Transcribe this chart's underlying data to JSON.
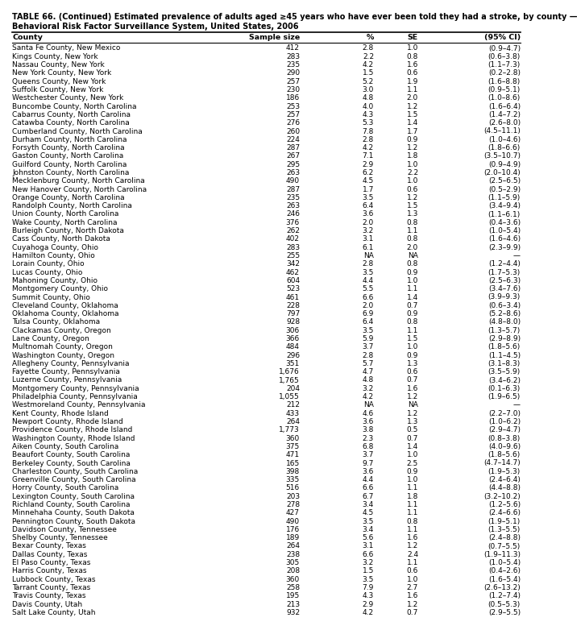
{
  "title_line1": "TABLE 66. (Continued) Estimated prevalence of adults aged ≥45 years who have ever been told they had a stroke, by county —",
  "title_line2": "Behavioral Risk Factor Surveillance System, United States, 2006",
  "headers": [
    "County",
    "Sample size",
    "%",
    "SE",
    "(95% CI)"
  ],
  "rows": [
    [
      "Santa Fe County, New Mexico",
      "412",
      "2.8",
      "1.0",
      "(0.9–4.7)"
    ],
    [
      "Kings County, New York",
      "283",
      "2.2",
      "0.8",
      "(0.6–3.8)"
    ],
    [
      "Nassau County, New York",
      "235",
      "4.2",
      "1.6",
      "(1.1–7.3)"
    ],
    [
      "New York County, New York",
      "290",
      "1.5",
      "0.6",
      "(0.2–2.8)"
    ],
    [
      "Queens County, New York",
      "257",
      "5.2",
      "1.9",
      "(1.6–8.8)"
    ],
    [
      "Suffolk County, New York",
      "230",
      "3.0",
      "1.1",
      "(0.9–5.1)"
    ],
    [
      "Westchester County, New York",
      "186",
      "4.8",
      "2.0",
      "(1.0–8.6)"
    ],
    [
      "Buncombe County, North Carolina",
      "253",
      "4.0",
      "1.2",
      "(1.6–6.4)"
    ],
    [
      "Cabarrus County, North Carolina",
      "257",
      "4.3",
      "1.5",
      "(1.4–7.2)"
    ],
    [
      "Catawba County, North Carolina",
      "276",
      "5.3",
      "1.4",
      "(2.6–8.0)"
    ],
    [
      "Cumberland County, North Carolina",
      "260",
      "7.8",
      "1.7",
      "(4.5–11.1)"
    ],
    [
      "Durham County, North Carolina",
      "224",
      "2.8",
      "0.9",
      "(1.0–4.6)"
    ],
    [
      "Forsyth County, North Carolina",
      "287",
      "4.2",
      "1.2",
      "(1.8–6.6)"
    ],
    [
      "Gaston County, North Carolina",
      "267",
      "7.1",
      "1.8",
      "(3.5–10.7)"
    ],
    [
      "Guilford County, North Carolina",
      "295",
      "2.9",
      "1.0",
      "(0.9–4.9)"
    ],
    [
      "Johnston County, North Carolina",
      "263",
      "6.2",
      "2.2",
      "(2.0–10.4)"
    ],
    [
      "Mecklenburg County, North Carolina",
      "490",
      "4.5",
      "1.0",
      "(2.5–6.5)"
    ],
    [
      "New Hanover County, North Carolina",
      "287",
      "1.7",
      "0.6",
      "(0.5–2.9)"
    ],
    [
      "Orange County, North Carolina",
      "235",
      "3.5",
      "1.2",
      "(1.1–5.9)"
    ],
    [
      "Randolph County, North Carolina",
      "263",
      "6.4",
      "1.5",
      "(3.4–9.4)"
    ],
    [
      "Union County, North Carolina",
      "246",
      "3.6",
      "1.3",
      "(1.1–6.1)"
    ],
    [
      "Wake County, North Carolina",
      "376",
      "2.0",
      "0.8",
      "(0.4–3.6)"
    ],
    [
      "Burleigh County, North Dakota",
      "262",
      "3.2",
      "1.1",
      "(1.0–5.4)"
    ],
    [
      "Cass County, North Dakota",
      "402",
      "3.1",
      "0.8",
      "(1.6–4.6)"
    ],
    [
      "Cuyahoga County, Ohio",
      "283",
      "6.1",
      "2.0",
      "(2.3–9.9)"
    ],
    [
      "Hamilton County, Ohio",
      "255",
      "NA",
      "NA",
      "—"
    ],
    [
      "Lorain County, Ohio",
      "342",
      "2.8",
      "0.8",
      "(1.2–4.4)"
    ],
    [
      "Lucas County, Ohio",
      "462",
      "3.5",
      "0.9",
      "(1.7–5.3)"
    ],
    [
      "Mahoning County, Ohio",
      "604",
      "4.4",
      "1.0",
      "(2.5–6.3)"
    ],
    [
      "Montgomery County, Ohio",
      "523",
      "5.5",
      "1.1",
      "(3.4–7.6)"
    ],
    [
      "Summit County, Ohio",
      "461",
      "6.6",
      "1.4",
      "(3.9–9.3)"
    ],
    [
      "Cleveland County, Oklahoma",
      "228",
      "2.0",
      "0.7",
      "(0.6–3.4)"
    ],
    [
      "Oklahoma County, Oklahoma",
      "797",
      "6.9",
      "0.9",
      "(5.2–8.6)"
    ],
    [
      "Tulsa County, Oklahoma",
      "928",
      "6.4",
      "0.8",
      "(4.8–8.0)"
    ],
    [
      "Clackamas County, Oregon",
      "306",
      "3.5",
      "1.1",
      "(1.3–5.7)"
    ],
    [
      "Lane County, Oregon",
      "366",
      "5.9",
      "1.5",
      "(2.9–8.9)"
    ],
    [
      "Multnomah County, Oregon",
      "484",
      "3.7",
      "1.0",
      "(1.8–5.6)"
    ],
    [
      "Washington County, Oregon",
      "296",
      "2.8",
      "0.9",
      "(1.1–4.5)"
    ],
    [
      "Allegheny County, Pennsylvania",
      "351",
      "5.7",
      "1.3",
      "(3.1–8.3)"
    ],
    [
      "Fayette County, Pennsylvania",
      "1,676",
      "4.7",
      "0.6",
      "(3.5–5.9)"
    ],
    [
      "Luzerne County, Pennsylvania",
      "1,765",
      "4.8",
      "0.7",
      "(3.4–6.2)"
    ],
    [
      "Montgomery County, Pennsylvania",
      "204",
      "3.2",
      "1.6",
      "(0.1–6.3)"
    ],
    [
      "Philadelphia County, Pennsylvania",
      "1,055",
      "4.2",
      "1.2",
      "(1.9–6.5)"
    ],
    [
      "Westmoreland County, Pennsylvania",
      "212",
      "NA",
      "NA",
      "—"
    ],
    [
      "Kent County, Rhode Island",
      "433",
      "4.6",
      "1.2",
      "(2.2–7.0)"
    ],
    [
      "Newport County, Rhode Island",
      "264",
      "3.6",
      "1.3",
      "(1.0–6.2)"
    ],
    [
      "Providence County, Rhode Island",
      "1,773",
      "3.8",
      "0.5",
      "(2.9–4.7)"
    ],
    [
      "Washington County, Rhode Island",
      "360",
      "2.3",
      "0.7",
      "(0.8–3.8)"
    ],
    [
      "Aiken County, South Carolina",
      "375",
      "6.8",
      "1.4",
      "(4.0–9.6)"
    ],
    [
      "Beaufort County, South Carolina",
      "471",
      "3.7",
      "1.0",
      "(1.8–5.6)"
    ],
    [
      "Berkeley County, South Carolina",
      "165",
      "9.7",
      "2.5",
      "(4.7–14.7)"
    ],
    [
      "Charleston County, South Carolina",
      "398",
      "3.6",
      "0.9",
      "(1.9–5.3)"
    ],
    [
      "Greenville County, South Carolina",
      "335",
      "4.4",
      "1.0",
      "(2.4–6.4)"
    ],
    [
      "Horry County, South Carolina",
      "516",
      "6.6",
      "1.1",
      "(4.4–8.8)"
    ],
    [
      "Lexington County, South Carolina",
      "203",
      "6.7",
      "1.8",
      "(3.2–10.2)"
    ],
    [
      "Richland County, South Carolina",
      "278",
      "3.4",
      "1.1",
      "(1.2–5.6)"
    ],
    [
      "Minnehaha County, South Dakota",
      "427",
      "4.5",
      "1.1",
      "(2.4–6.6)"
    ],
    [
      "Pennington County, South Dakota",
      "490",
      "3.5",
      "0.8",
      "(1.9–5.1)"
    ],
    [
      "Davidson County, Tennessee",
      "176",
      "3.4",
      "1.1",
      "(1.3–5.5)"
    ],
    [
      "Shelby County, Tennessee",
      "189",
      "5.6",
      "1.6",
      "(2.4–8.8)"
    ],
    [
      "Bexar County, Texas",
      "264",
      "3.1",
      "1.2",
      "(0.7–5.5)"
    ],
    [
      "Dallas County, Texas",
      "238",
      "6.6",
      "2.4",
      "(1.9–11.3)"
    ],
    [
      "El Paso County, Texas",
      "305",
      "3.2",
      "1.1",
      "(1.0–5.4)"
    ],
    [
      "Harris County, Texas",
      "208",
      "1.5",
      "0.6",
      "(0.4–2.6)"
    ],
    [
      "Lubbock County, Texas",
      "360",
      "3.5",
      "1.0",
      "(1.6–5.4)"
    ],
    [
      "Tarrant County, Texas",
      "258",
      "7.9",
      "2.7",
      "(2.6–13.2)"
    ],
    [
      "Travis County, Texas",
      "195",
      "4.3",
      "1.6",
      "(1.2–7.4)"
    ],
    [
      "Davis County, Utah",
      "213",
      "2.9",
      "1.2",
      "(0.5–5.3)"
    ],
    [
      "Salt Lake County, Utah",
      "932",
      "4.2",
      "0.7",
      "(2.9–5.5)"
    ]
  ],
  "bg_color": "#ffffff",
  "font_size": 6.5,
  "header_font_size": 6.8,
  "title_font_size": 7.0
}
